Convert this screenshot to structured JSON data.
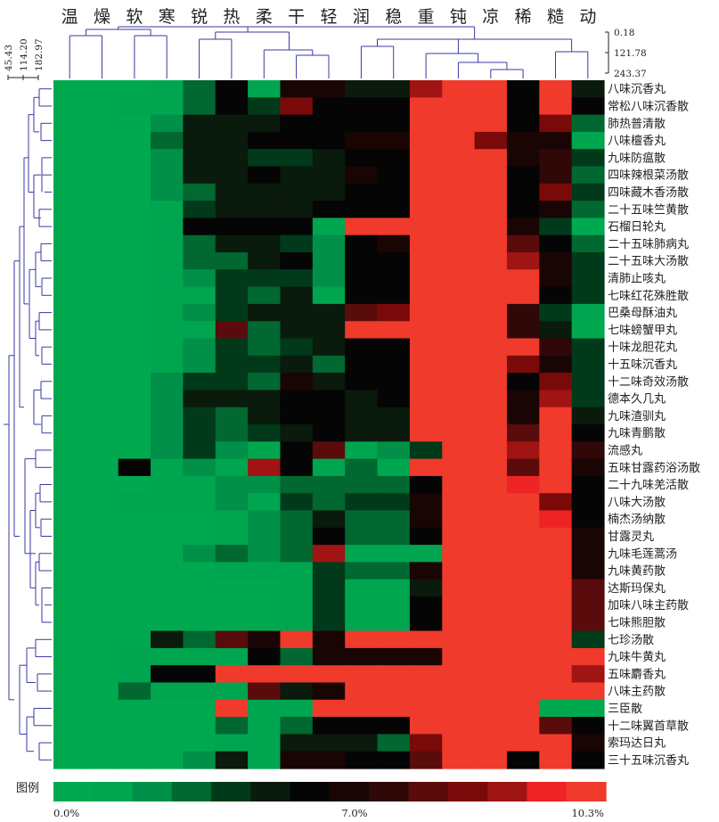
{
  "chart_data": {
    "type": "heatmap",
    "columns": [
      "温",
      "燥",
      "软",
      "寒",
      "锐",
      "热",
      "柔",
      "干",
      "轻",
      "润",
      "稳",
      "重",
      "钝",
      "凉",
      "稀",
      "糙",
      "动"
    ],
    "rows": [
      "八味沉香丸",
      "常松八味沉香散",
      "肺热普清散",
      "八味檀香丸",
      "九味防瘟散",
      "四味辣根菜汤散",
      "四味藏木香汤散",
      "二十五味竺黄散",
      "石榴日轮丸",
      "二十五味肺病丸",
      "二十五味大汤散",
      "清肺止咳丸",
      "七味红花殊胜散",
      "巴桑母酥油丸",
      "七味螃蟹甲丸",
      "十味龙胆花丸",
      "十五味沉香丸",
      "十二味奇效汤散",
      "德本久几丸",
      "九味渣驯丸",
      "九味青鹏散",
      "流感丸",
      "五味甘露药浴汤散",
      "二十九味羌活散",
      "八味大汤散",
      "楠杰汤纳散",
      "甘露灵丸",
      "九味毛莲蒿汤",
      "九味黄药散",
      "达斯玛保丸",
      "加味八味主药散",
      "七味熊胆散",
      "七珍汤散",
      "九味牛黄丸",
      "五味麝香丸",
      "八味主药散",
      "三臣散",
      "十二味翼首草散",
      "索玛达日丸",
      "三十五味沉香丸"
    ],
    "levels": [
      [
        0,
        0,
        0,
        1,
        3,
        6,
        1,
        7,
        7,
        5,
        5,
        11,
        13,
        13,
        6,
        13,
        5
      ],
      [
        0,
        0,
        1,
        1,
        3,
        6,
        4,
        10,
        6,
        6,
        6,
        13,
        13,
        13,
        6,
        13,
        6
      ],
      [
        0,
        0,
        0,
        2,
        5,
        5,
        5,
        6,
        6,
        6,
        6,
        13,
        13,
        13,
        6,
        10,
        3
      ],
      [
        0,
        0,
        0,
        3,
        5,
        5,
        6,
        6,
        6,
        7,
        7,
        13,
        13,
        10,
        7,
        7,
        1
      ],
      [
        0,
        0,
        0,
        2,
        5,
        5,
        4,
        4,
        5,
        6,
        6,
        13,
        13,
        13,
        7,
        8,
        4
      ],
      [
        0,
        0,
        0,
        2,
        5,
        5,
        6,
        5,
        5,
        7,
        6,
        13,
        13,
        13,
        6,
        8,
        3
      ],
      [
        0,
        0,
        0,
        2,
        3,
        5,
        5,
        5,
        5,
        6,
        6,
        13,
        13,
        13,
        6,
        10,
        4
      ],
      [
        0,
        0,
        0,
        1,
        4,
        5,
        5,
        5,
        6,
        6,
        6,
        13,
        13,
        13,
        6,
        7,
        3
      ],
      [
        0,
        0,
        0,
        1,
        6,
        6,
        6,
        6,
        1,
        13,
        13,
        13,
        13,
        13,
        7,
        4,
        0
      ],
      [
        0,
        0,
        0,
        1,
        3,
        5,
        5,
        4,
        2,
        6,
        7,
        13,
        13,
        13,
        9,
        6,
        3
      ],
      [
        0,
        0,
        0,
        1,
        3,
        3,
        5,
        6,
        2,
        6,
        6,
        13,
        13,
        13,
        11,
        7,
        4
      ],
      [
        0,
        0,
        0,
        1,
        2,
        4,
        4,
        4,
        2,
        6,
        6,
        13,
        13,
        13,
        13,
        7,
        4
      ],
      [
        0,
        0,
        0,
        1,
        1,
        4,
        3,
        5,
        1,
        6,
        6,
        13,
        13,
        13,
        13,
        6,
        4
      ],
      [
        0,
        0,
        0,
        1,
        2,
        4,
        5,
        5,
        5,
        9,
        10,
        13,
        13,
        13,
        8,
        4,
        1
      ],
      [
        0,
        0,
        0,
        1,
        1,
        9,
        3,
        5,
        5,
        13,
        13,
        13,
        13,
        13,
        8,
        5,
        0
      ],
      [
        0,
        0,
        0,
        1,
        2,
        4,
        3,
        4,
        5,
        6,
        6,
        13,
        13,
        13,
        13,
        8,
        4
      ],
      [
        0,
        0,
        0,
        1,
        2,
        4,
        4,
        5,
        3,
        6,
        6,
        13,
        13,
        13,
        10,
        7,
        4
      ],
      [
        0,
        0,
        0,
        2,
        4,
        4,
        3,
        7,
        5,
        6,
        6,
        13,
        13,
        13,
        6,
        10,
        4
      ],
      [
        0,
        0,
        0,
        2,
        5,
        5,
        5,
        6,
        6,
        5,
        6,
        13,
        13,
        13,
        7,
        11,
        4
      ],
      [
        0,
        0,
        0,
        2,
        4,
        3,
        5,
        6,
        6,
        5,
        5,
        13,
        13,
        13,
        7,
        13,
        5
      ],
      [
        0,
        0,
        0,
        2,
        4,
        3,
        4,
        5,
        6,
        5,
        5,
        13,
        13,
        13,
        9,
        13,
        6
      ],
      [
        0,
        0,
        0,
        2,
        4,
        2,
        1,
        6,
        9,
        1,
        2,
        4,
        13,
        13,
        11,
        13,
        8
      ],
      [
        0,
        0,
        6,
        1,
        2,
        1,
        11,
        6,
        1,
        3,
        1,
        13,
        13,
        13,
        9,
        13,
        7
      ],
      [
        0,
        0,
        0,
        1,
        1,
        2,
        2,
        3,
        3,
        3,
        3,
        6,
        13,
        13,
        12,
        13,
        6
      ],
      [
        0,
        0,
        1,
        1,
        1,
        2,
        1,
        4,
        3,
        4,
        4,
        7,
        13,
        13,
        13,
        10,
        6
      ],
      [
        0,
        0,
        0,
        0,
        0,
        1,
        2,
        3,
        5,
        3,
        3,
        7,
        13,
        13,
        13,
        12,
        6
      ],
      [
        0,
        0,
        0,
        0,
        0,
        1,
        2,
        3,
        6,
        3,
        3,
        6,
        13,
        13,
        13,
        13,
        7
      ],
      [
        0,
        0,
        0,
        0,
        2,
        3,
        2,
        3,
        11,
        1,
        1,
        1,
        13,
        13,
        13,
        13,
        7
      ],
      [
        0,
        0,
        0,
        0,
        0,
        1,
        1,
        1,
        4,
        3,
        3,
        7,
        13,
        13,
        13,
        13,
        7
      ],
      [
        0,
        0,
        0,
        0,
        0,
        0,
        0,
        1,
        4,
        1,
        1,
        5,
        13,
        13,
        13,
        13,
        9
      ],
      [
        0,
        0,
        0,
        0,
        0,
        0,
        0,
        1,
        4,
        1,
        1,
        6,
        13,
        13,
        13,
        13,
        9
      ],
      [
        0,
        0,
        0,
        0,
        0,
        0,
        0,
        1,
        4,
        1,
        1,
        6,
        13,
        13,
        13,
        13,
        9
      ],
      [
        0,
        0,
        0,
        5,
        3,
        9,
        7,
        13,
        7,
        13,
        13,
        13,
        13,
        13,
        13,
        13,
        4
      ],
      [
        0,
        0,
        1,
        1,
        1,
        1,
        6,
        3,
        7,
        7,
        7,
        7,
        13,
        13,
        13,
        13,
        13
      ],
      [
        0,
        0,
        1,
        6,
        6,
        13,
        13,
        13,
        13,
        13,
        13,
        13,
        13,
        13,
        13,
        13,
        11
      ],
      [
        0,
        0,
        3,
        1,
        1,
        1,
        9,
        5,
        7,
        13,
        13,
        13,
        13,
        13,
        13,
        13,
        13
      ],
      [
        0,
        0,
        0,
        0,
        0,
        13,
        1,
        1,
        13,
        13,
        13,
        13,
        13,
        13,
        13,
        0,
        0
      ],
      [
        0,
        0,
        0,
        0,
        0,
        3,
        1,
        3,
        6,
        6,
        6,
        13,
        13,
        13,
        13,
        9,
        6
      ],
      [
        0,
        0,
        0,
        0,
        0,
        1,
        1,
        5,
        5,
        5,
        3,
        10,
        13,
        13,
        13,
        13,
        7
      ],
      [
        0,
        0,
        0,
        0,
        2,
        5,
        1,
        7,
        7,
        6,
        6,
        9,
        13,
        13,
        6,
        13,
        6
      ]
    ],
    "palette": [
      "#00a950",
      "#00a550",
      "#009048",
      "#006830",
      "#003a1a",
      "#0a1a0c",
      "#050505",
      "#1a0505",
      "#300808",
      "#5a0c0c",
      "#7a0a0a",
      "#a01414",
      "#ee2424",
      "#ef3a2c"
    ],
    "column_dendrogram_scale": [
      "0.18",
      "121.78",
      "243.37"
    ],
    "row_dendrogram_scale": [
      "45.43",
      "114.20",
      "182.97"
    ],
    "legend": {
      "title": "图例",
      "min_label": "0.0%",
      "mid_label": "7.0%",
      "max_label": "10.3%"
    }
  }
}
